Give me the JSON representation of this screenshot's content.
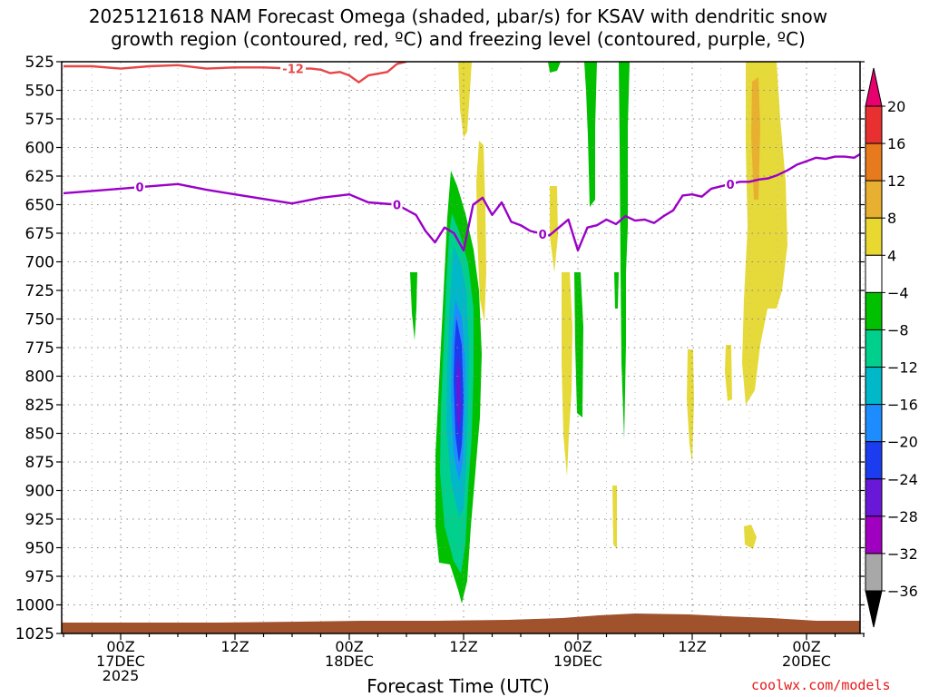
{
  "title": {
    "line1": "2025121618 NAM Forecast Omega (shaded, μbar/s) for KSAV with dendritic snow",
    "line2": "growth region (contoured, red, ºC) and freezing level (contoured, purple, ºC)"
  },
  "watermark": "coolwx.com/models",
  "colors": {
    "dgz_contour": "#e84545",
    "freezing_contour": "#9a00c8",
    "terrain": "#a0522d",
    "grid": "#888888"
  },
  "chart_data": {
    "type": "heatmap",
    "xlabel": "Forecast Time (UTC)",
    "ylabel": "",
    "x_range_hours_from_start": [
      0,
      84
    ],
    "y_axis": {
      "scale": "pressure (hPa)",
      "range": [
        525,
        1025
      ],
      "ticks": [
        525,
        550,
        575,
        600,
        625,
        650,
        675,
        700,
        725,
        750,
        775,
        800,
        825,
        850,
        875,
        900,
        925,
        950,
        975,
        1000,
        1025
      ]
    },
    "x_ticks": [
      {
        "hour": 6,
        "lines": [
          "00Z",
          "17DEC",
          "2025"
        ]
      },
      {
        "hour": 18,
        "lines": [
          "12Z"
        ]
      },
      {
        "hour": 30,
        "lines": [
          "00Z",
          "18DEC"
        ]
      },
      {
        "hour": 42,
        "lines": [
          "12Z"
        ]
      },
      {
        "hour": 54,
        "lines": [
          "00Z",
          "19DEC"
        ]
      },
      {
        "hour": 66,
        "lines": [
          "12Z"
        ]
      },
      {
        "hour": 78,
        "lines": [
          "00Z",
          "20DEC"
        ]
      }
    ],
    "grid": true,
    "colorbar": {
      "levels": [
        -36,
        -32,
        -28,
        -24,
        -20,
        -16,
        -12,
        -8,
        -4,
        4,
        8,
        12,
        16,
        20
      ],
      "labels": [
        "20",
        "16",
        "12",
        "8",
        "4",
        "−4",
        "−8",
        "−12",
        "−16",
        "−20",
        "−24",
        "−28",
        "−32",
        "−36"
      ],
      "colors_top_to_bottom": [
        "#e8006e",
        "#e83030",
        "#e87a1e",
        "#e8b030",
        "#e8d830",
        "#ffffff",
        "#00c000",
        "#00d08c",
        "#00b8c8",
        "#1c8cff",
        "#1c3cf0",
        "#6a18d8",
        "#a000c0",
        "#a8a8a8",
        "#000000"
      ]
    },
    "shaded_regions": [
      {
        "name": "main-ascent-green",
        "value": -8,
        "hour": 41.5,
        "p_top": 600,
        "p_bottom": 990
      },
      {
        "name": "main-ascent-teal",
        "value": -12,
        "hour": 41.5,
        "p_top": 640,
        "p_bottom": 940
      },
      {
        "name": "main-ascent-cyan",
        "value": -16,
        "hour": 41.7,
        "p_top": 665,
        "p_bottom": 890
      },
      {
        "name": "main-ascent-blue",
        "value": -20,
        "hour": 41.8,
        "p_top": 705,
        "p_bottom": 875
      },
      {
        "name": "main-ascent-purple",
        "value": -24,
        "hour": 42.0,
        "p_top": 725,
        "p_bottom": 850
      },
      {
        "name": "sinking-yellow-1",
        "value": 4,
        "hour": 42.3,
        "p_top": 525,
        "p_bottom": 570
      },
      {
        "name": "sinking-yellow-2",
        "value": 4,
        "hour": 43.9,
        "p_top": 575,
        "p_bottom": 705
      },
      {
        "name": "sinking-yellow-3",
        "value": 4,
        "hour": 76.4,
        "p_top": 525,
        "p_bottom": 780
      }
    ],
    "contours": [
      {
        "name": "dendritic-growth-region",
        "level": -12,
        "label": "-12",
        "color": "#e84545",
        "points": [
          [
            0,
            529
          ],
          [
            3,
            529
          ],
          [
            6,
            531
          ],
          [
            9,
            529
          ],
          [
            12,
            528
          ],
          [
            15,
            531
          ],
          [
            18,
            530
          ],
          [
            21,
            530
          ],
          [
            24,
            531
          ],
          [
            26,
            531
          ],
          [
            27,
            532
          ],
          [
            28,
            535
          ],
          [
            29,
            534
          ],
          [
            30,
            537
          ],
          [
            31,
            543
          ],
          [
            32,
            537
          ],
          [
            34,
            534
          ],
          [
            35,
            527
          ],
          [
            36,
            525
          ]
        ]
      },
      {
        "name": "freezing-level",
        "level": 0,
        "label": "0",
        "color": "#9a00c8",
        "points": [
          [
            0,
            640
          ],
          [
            3,
            638
          ],
          [
            6,
            636
          ],
          [
            9,
            634
          ],
          [
            12,
            632
          ],
          [
            15,
            637
          ],
          [
            18,
            641
          ],
          [
            21,
            645
          ],
          [
            24,
            649
          ],
          [
            27,
            644
          ],
          [
            30,
            641
          ],
          [
            32,
            648
          ],
          [
            35,
            650
          ],
          [
            37,
            659
          ],
          [
            38,
            673
          ],
          [
            39,
            683
          ],
          [
            40,
            670
          ],
          [
            41,
            675
          ],
          [
            42,
            690
          ],
          [
            43,
            650
          ],
          [
            44,
            644
          ],
          [
            45,
            659
          ],
          [
            46,
            648
          ],
          [
            47,
            665
          ],
          [
            48,
            668
          ],
          [
            49,
            673
          ],
          [
            51,
            677
          ],
          [
            53,
            663
          ],
          [
            54,
            690
          ],
          [
            55,
            670
          ],
          [
            56,
            668
          ],
          [
            57,
            663
          ],
          [
            58,
            667
          ],
          [
            59,
            660
          ],
          [
            60,
            664
          ],
          [
            61,
            663
          ],
          [
            62,
            666
          ],
          [
            63,
            660
          ],
          [
            64,
            655
          ],
          [
            65,
            642
          ],
          [
            66,
            641
          ],
          [
            67,
            643
          ],
          [
            68,
            636
          ],
          [
            69,
            634
          ],
          [
            70,
            632
          ],
          [
            71,
            630
          ],
          [
            72,
            630
          ],
          [
            73,
            628
          ],
          [
            74,
            627
          ],
          [
            75,
            624
          ],
          [
            76,
            620
          ],
          [
            77,
            615
          ],
          [
            78,
            612
          ],
          [
            79,
            609
          ],
          [
            80,
            610
          ],
          [
            81,
            608
          ],
          [
            82,
            608
          ],
          [
            83,
            609
          ],
          [
            84,
            604
          ]
        ]
      }
    ]
  }
}
